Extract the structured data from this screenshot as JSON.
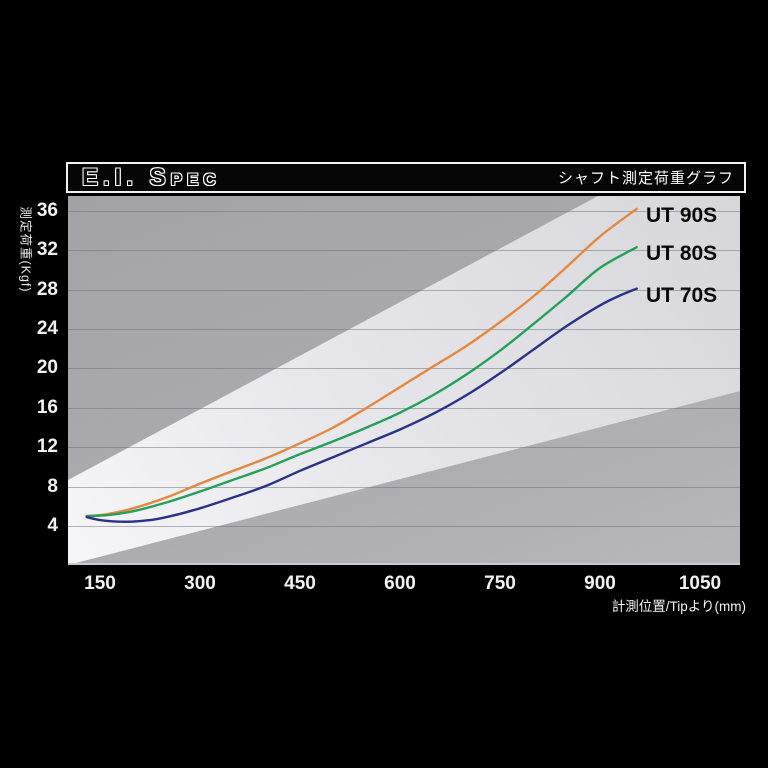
{
  "header": {
    "title": "E.I. Spec",
    "subtitle": "シャフト測定荷重グラフ"
  },
  "chart_data": {
    "type": "line",
    "title": "E.I. Spec",
    "subtitle": "シャフト測定荷重グラフ",
    "xlabel": "計測位置/Tipより(mm)",
    "ylabel": "測定荷重(Kgf)",
    "xlim": [
      102,
      1110
    ],
    "ylim": [
      0,
      37.5
    ],
    "xticks": [
      150,
      300,
      450,
      600,
      750,
      900,
      1050
    ],
    "yticks": [
      4,
      8,
      12,
      16,
      20,
      24,
      28,
      32,
      36
    ],
    "grid": "horizontal-only",
    "legend_position": "labels-at-line-ends-right",
    "series": [
      {
        "name": "UT 90S",
        "color": "#e6873f",
        "x": [
          130,
          160,
          200,
          250,
          300,
          350,
          400,
          450,
          500,
          550,
          600,
          650,
          700,
          750,
          800,
          850,
          900,
          955
        ],
        "y": [
          5.0,
          5.2,
          5.8,
          6.9,
          8.3,
          9.6,
          10.9,
          12.4,
          14.0,
          16.0,
          18.1,
          20.2,
          22.3,
          24.7,
          27.3,
          30.3,
          33.4,
          36.2
        ]
      },
      {
        "name": "UT 80S",
        "color": "#23a05c",
        "x": [
          130,
          160,
          200,
          250,
          300,
          350,
          400,
          450,
          500,
          550,
          600,
          650,
          700,
          750,
          800,
          850,
          900,
          955
        ],
        "y": [
          5.0,
          5.1,
          5.5,
          6.4,
          7.5,
          8.7,
          9.9,
          11.3,
          12.6,
          14.0,
          15.5,
          17.3,
          19.4,
          21.8,
          24.5,
          27.3,
          30.2,
          32.3
        ]
      },
      {
        "name": "UT 70S",
        "color": "#2a318a",
        "x": [
          130,
          150,
          175,
          200,
          225,
          250,
          300,
          350,
          400,
          450,
          500,
          550,
          600,
          650,
          700,
          750,
          800,
          850,
          900,
          930,
          955
        ],
        "y": [
          4.9,
          4.6,
          4.45,
          4.45,
          4.6,
          4.9,
          5.8,
          6.9,
          8.1,
          9.6,
          11.0,
          12.4,
          13.8,
          15.4,
          17.3,
          19.5,
          21.9,
          24.3,
          26.4,
          27.4,
          28.1
        ]
      }
    ]
  }
}
